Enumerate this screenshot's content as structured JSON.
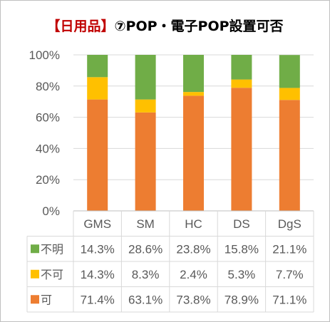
{
  "title": {
    "prefix": "【日用品】",
    "rest": "⑦POP・電子POP設置可否"
  },
  "chart_data": {
    "type": "bar",
    "stacked": true,
    "categories": [
      "GMS",
      "SM",
      "HC",
      "DS",
      "DgS"
    ],
    "series": [
      {
        "name": "可",
        "color": "#ed7d31",
        "values": [
          71.4,
          63.1,
          73.8,
          78.9,
          71.1
        ]
      },
      {
        "name": "不可",
        "color": "#ffc000",
        "values": [
          14.3,
          8.3,
          2.4,
          5.3,
          7.7
        ]
      },
      {
        "name": "不明",
        "color": "#70ad47",
        "values": [
          14.3,
          28.6,
          23.8,
          15.8,
          21.1
        ]
      }
    ],
    "y_ticks": [
      "0%",
      "20%",
      "40%",
      "60%",
      "80%",
      "100%"
    ],
    "ylim": [
      0,
      100
    ],
    "table_rows": [
      {
        "name": "不明",
        "color": "#70ad47",
        "cells": [
          "14.3%",
          "28.6%",
          "23.8%",
          "15.8%",
          "21.1%"
        ]
      },
      {
        "name": "不可",
        "color": "#ffc000",
        "cells": [
          "14.3%",
          "8.3%",
          "2.4%",
          "5.3%",
          "7.7%"
        ]
      },
      {
        "name": "可",
        "color": "#ed7d31",
        "cells": [
          "71.4%",
          "63.1%",
          "73.8%",
          "78.9%",
          "71.1%"
        ]
      }
    ]
  }
}
